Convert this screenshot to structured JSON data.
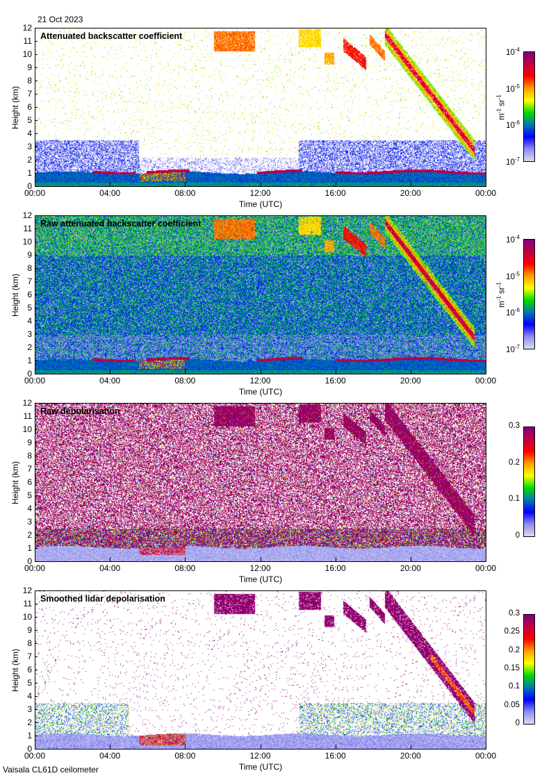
{
  "header": {
    "date": "21 Oct 2023"
  },
  "footer": {
    "instrument": "Vaisala CL61D ceilometer"
  },
  "colors": {
    "cmap": [
      "#dcdcee",
      "#8c8cf0",
      "#0000ff",
      "#0078b4",
      "#00dc00",
      "#ffff00",
      "#ffa000",
      "#ff0000",
      "#c00040",
      "#800080"
    ]
  },
  "chart_data": [
    {
      "type": "heatmap",
      "title": "Attenuated backscatter coefficient",
      "xlabel": "Time (UTC)",
      "ylabel": "Height (km)",
      "xticks": [
        "00:00",
        "04:00",
        "08:00",
        "12:00",
        "16:00",
        "20:00",
        "00:00"
      ],
      "yticks": [
        "0",
        "1",
        "2",
        "3",
        "4",
        "5",
        "6",
        "7",
        "8",
        "9",
        "10",
        "11",
        "12"
      ],
      "ylim": [
        0,
        12
      ],
      "xlim_hours": [
        0,
        24
      ],
      "colorbar": {
        "scale": "log",
        "range": [
          1e-07,
          0.0001
        ],
        "ticks": [
          {
            "base": "10",
            "exp": "-7"
          },
          {
            "base": "10",
            "exp": "-6"
          },
          {
            "base": "10",
            "exp": "-5"
          },
          {
            "base": "10",
            "exp": "-4"
          }
        ],
        "unit": {
          "a": "m",
          "a_exp": "-1",
          "b": "sr",
          "b_exp": "-1"
        }
      },
      "scene": "backscatter"
    },
    {
      "type": "heatmap",
      "title": "Raw attenuated backscatter coefficient",
      "xlabel": "Time (UTC)",
      "ylabel": "Height (km)",
      "xticks": [
        "00:00",
        "04:00",
        "08:00",
        "12:00",
        "16:00",
        "20:00",
        "00:00"
      ],
      "yticks": [
        "0",
        "1",
        "2",
        "3",
        "4",
        "5",
        "6",
        "7",
        "8",
        "9",
        "10",
        "11",
        "12"
      ],
      "ylim": [
        0,
        12
      ],
      "xlim_hours": [
        0,
        24
      ],
      "colorbar": {
        "scale": "log",
        "range": [
          1e-07,
          0.0001
        ],
        "ticks": [
          {
            "base": "10",
            "exp": "-7"
          },
          {
            "base": "10",
            "exp": "-6"
          },
          {
            "base": "10",
            "exp": "-5"
          },
          {
            "base": "10",
            "exp": "-4"
          }
        ],
        "unit": {
          "a": "m",
          "a_exp": "-1",
          "b": "sr",
          "b_exp": "-1"
        }
      },
      "scene": "raw_backscatter"
    },
    {
      "type": "heatmap",
      "title": "Raw depolarisation",
      "xlabel": "Time (UTC)",
      "ylabel": "Height (km)",
      "xticks": [
        "00:00",
        "04:00",
        "08:00",
        "12:00",
        "16:00",
        "20:00",
        "00:00"
      ],
      "yticks": [
        "0",
        "1",
        "2",
        "3",
        "4",
        "5",
        "6",
        "7",
        "8",
        "9",
        "10",
        "11",
        "12"
      ],
      "ylim": [
        0,
        12
      ],
      "xlim_hours": [
        0,
        24
      ],
      "colorbar": {
        "scale": "linear",
        "range": [
          0,
          0.3
        ],
        "ticks": [
          {
            "base": "0"
          },
          {
            "base": "0.1"
          },
          {
            "base": "0.2"
          },
          {
            "base": "0.3"
          }
        ]
      },
      "scene": "raw_depol"
    },
    {
      "type": "heatmap",
      "title": "Smoothed lidar depolarisation",
      "xlabel": "Time (UTC)",
      "ylabel": "Height (km)",
      "xticks": [
        "00:00",
        "04:00",
        "08:00",
        "12:00",
        "16:00",
        "20:00",
        "00:00"
      ],
      "yticks": [
        "0",
        "1",
        "2",
        "3",
        "4",
        "5",
        "6",
        "7",
        "8",
        "9",
        "10",
        "11",
        "12"
      ],
      "ylim": [
        0,
        12
      ],
      "xlim_hours": [
        0,
        24
      ],
      "colorbar": {
        "scale": "linear",
        "range": [
          0,
          0.3
        ],
        "ticks": [
          {
            "base": "0"
          },
          {
            "base": "0.05"
          },
          {
            "base": "0.1"
          },
          {
            "base": "0.15"
          },
          {
            "base": "0.2"
          },
          {
            "base": "0.25"
          },
          {
            "base": "0.3"
          }
        ]
      },
      "scene": "smooth_depol"
    }
  ]
}
